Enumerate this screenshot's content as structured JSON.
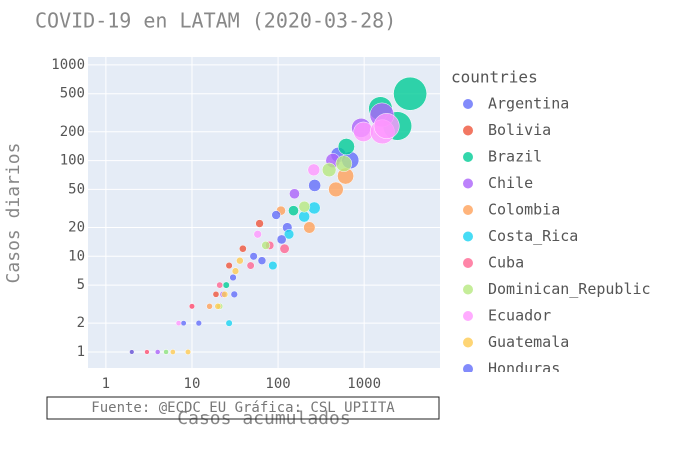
{
  "chart_data": {
    "type": "scatter",
    "title": "COVID-19 en LATAM (2020-03-28)",
    "x_label": "Casos acumulados",
    "y_label": "Casos diarios",
    "annotation": "Fuente: @ECDC_EU Gráfica: CSL UPIITA",
    "legend_title": "countries",
    "log_x": true,
    "log_y": true,
    "grid": true,
    "xlim": [
      0.62,
      7600
    ],
    "ylim": [
      0.68,
      1210
    ],
    "xticks": [
      1,
      10,
      100,
      1000
    ],
    "yticks": [
      1,
      2,
      5,
      10,
      20,
      50,
      100,
      200,
      500,
      1000
    ],
    "series": [
      {
        "name": "Argentina",
        "color": "#636efa",
        "x": [
          3,
          12,
          31,
          65,
          128,
          266,
          502,
          690
        ],
        "values": [
          1,
          2,
          4,
          9,
          20,
          55,
          115,
          101
        ]
      },
      {
        "name": "Bolivia",
        "color": "#EF553B",
        "x": [
          2,
          10,
          19,
          27,
          39,
          61
        ],
        "values": [
          1,
          3,
          4,
          8,
          12,
          22
        ]
      },
      {
        "name": "Brazil",
        "color": "#00cc96",
        "x": [
          25,
          151,
          621,
          1546,
          2433,
          3417
        ],
        "values": [
          5,
          30,
          140,
          350,
          230,
          500
        ]
      },
      {
        "name": "Chile",
        "color": "#ab63fa",
        "x": [
          4,
          23,
          155,
          434,
          922,
          1610
        ],
        "values": [
          1,
          4,
          45,
          100,
          220,
          300
        ]
      },
      {
        "name": "Colombia",
        "color": "#FFA15A",
        "x": [
          3,
          16,
          108,
          231,
          470,
          608
        ],
        "values": [
          1,
          3,
          30,
          20,
          50,
          69
        ]
      },
      {
        "name": "Costa_Rica",
        "color": "#19d3f3",
        "x": [
          5,
          27,
          87,
          134,
          201,
          263
        ],
        "values": [
          1,
          2,
          8,
          17,
          26,
          32
        ]
      },
      {
        "name": "Cuba",
        "color": "#FF6692",
        "x": [
          3,
          10,
          21,
          48,
          80,
          119
        ],
        "values": [
          1,
          3,
          5,
          8,
          13,
          12
        ]
      },
      {
        "name": "Dominican_Republic",
        "color": "#B6E880",
        "x": [
          5,
          21,
          72,
          202,
          392,
          581
        ],
        "values": [
          1,
          3,
          13,
          33,
          80,
          93
        ]
      },
      {
        "name": "Ecuador",
        "color": "#FF97FF",
        "x": [
          7,
          58,
          260,
          981,
          1627,
          1823
        ],
        "values": [
          2,
          17,
          80,
          200,
          200,
          230
        ]
      },
      {
        "name": "Guatemala",
        "color": "#FECB52",
        "x": [
          6,
          9,
          20,
          24,
          32,
          36
        ],
        "values": [
          1,
          1,
          3,
          4,
          7,
          9
        ]
      },
      {
        "name": "Honduras",
        "color": "#636efa",
        "x": [
          2,
          8,
          30,
          52,
          95,
          110
        ],
        "values": [
          1,
          2,
          6,
          10,
          27,
          15
        ]
      }
    ]
  }
}
